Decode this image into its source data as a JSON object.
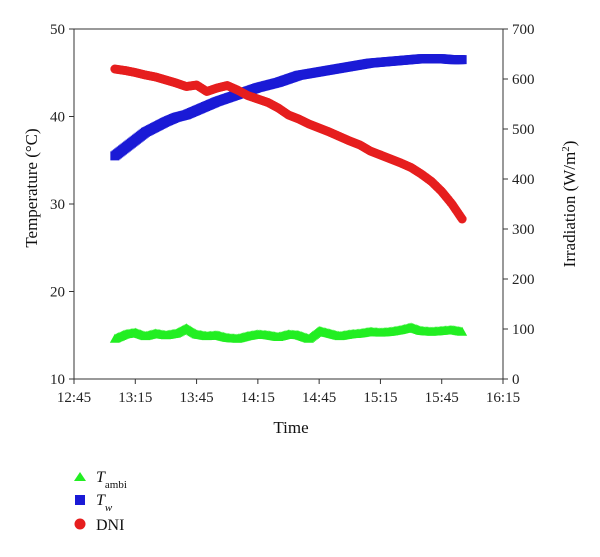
{
  "chart_data": {
    "type": "scatter",
    "x_axis": {
      "label": "Time",
      "tick_values": [
        "12:45",
        "13:15",
        "13:45",
        "14:15",
        "14:45",
        "15:15",
        "15:45",
        "16:15"
      ],
      "range": [
        "12:45",
        "16:15"
      ]
    },
    "y_left": {
      "label": "Temperature (°C)",
      "ticks": [
        10,
        20,
        30,
        40,
        50
      ],
      "range": [
        10,
        50
      ]
    },
    "y_right": {
      "label_prefix": "Irradiation (W/m",
      "label_sup": "2",
      "label_suffix": ")",
      "ticks": [
        0,
        100,
        200,
        300,
        400,
        500,
        600,
        700
      ],
      "range": [
        0,
        700
      ]
    },
    "series": [
      {
        "key": "tambi",
        "name_main": "T",
        "name_sub": "ambi",
        "axis": "left",
        "marker": "triangle",
        "color": "#22ee22",
        "points": [
          [
            "13:05",
            14.6
          ],
          [
            "13:10",
            15.1
          ],
          [
            "13:15",
            15.3
          ],
          [
            "13:20",
            14.9
          ],
          [
            "13:25",
            15.2
          ],
          [
            "13:30",
            15.0
          ],
          [
            "13:35",
            15.2
          ],
          [
            "13:40",
            15.8
          ],
          [
            "13:45",
            15.1
          ],
          [
            "13:50",
            14.9
          ],
          [
            "13:55",
            15.0
          ],
          [
            "14:00",
            14.7
          ],
          [
            "14:05",
            14.6
          ],
          [
            "14:10",
            14.9
          ],
          [
            "14:15",
            15.1
          ],
          [
            "14:20",
            15.0
          ],
          [
            "14:25",
            14.8
          ],
          [
            "14:30",
            15.1
          ],
          [
            "14:35",
            15.0
          ],
          [
            "14:40",
            14.6
          ],
          [
            "14:45",
            15.5
          ],
          [
            "14:50",
            15.2
          ],
          [
            "14:55",
            14.9
          ],
          [
            "15:00",
            15.1
          ],
          [
            "15:05",
            15.2
          ],
          [
            "15:10",
            15.4
          ],
          [
            "15:15",
            15.3
          ],
          [
            "15:20",
            15.4
          ],
          [
            "15:25",
            15.6
          ],
          [
            "15:30",
            15.9
          ],
          [
            "15:35",
            15.5
          ],
          [
            "15:40",
            15.4
          ],
          [
            "15:45",
            15.5
          ],
          [
            "15:50",
            15.6
          ],
          [
            "15:55",
            15.4
          ]
        ]
      },
      {
        "key": "tw",
        "name_main": "T",
        "name_sub": "w",
        "axis": "left",
        "marker": "square",
        "color": "#1a1ad6",
        "points": [
          [
            "13:05",
            35.5
          ],
          [
            "13:10",
            36.4
          ],
          [
            "13:15",
            37.3
          ],
          [
            "13:20",
            38.2
          ],
          [
            "13:25",
            38.8
          ],
          [
            "13:30",
            39.4
          ],
          [
            "13:35",
            39.9
          ],
          [
            "13:40",
            40.2
          ],
          [
            "13:45",
            40.7
          ],
          [
            "13:50",
            41.2
          ],
          [
            "13:55",
            41.7
          ],
          [
            "14:00",
            42.1
          ],
          [
            "14:05",
            42.5
          ],
          [
            "14:10",
            42.9
          ],
          [
            "14:15",
            43.3
          ],
          [
            "14:20",
            43.6
          ],
          [
            "14:25",
            43.9
          ],
          [
            "14:30",
            44.3
          ],
          [
            "14:35",
            44.7
          ],
          [
            "14:40",
            44.9
          ],
          [
            "14:45",
            45.1
          ],
          [
            "14:50",
            45.3
          ],
          [
            "14:55",
            45.5
          ],
          [
            "15:00",
            45.7
          ],
          [
            "15:05",
            45.9
          ],
          [
            "15:10",
            46.1
          ],
          [
            "15:15",
            46.2
          ],
          [
            "15:20",
            46.3
          ],
          [
            "15:25",
            46.4
          ],
          [
            "15:30",
            46.5
          ],
          [
            "15:35",
            46.6
          ],
          [
            "15:40",
            46.6
          ],
          [
            "15:45",
            46.6
          ],
          [
            "15:50",
            46.5
          ],
          [
            "15:55",
            46.5
          ]
        ]
      },
      {
        "key": "dni",
        "name_main": "DNI",
        "name_sub": "",
        "axis": "right",
        "marker": "circle",
        "color": "#e61e1e",
        "points": [
          [
            "13:05",
            620
          ],
          [
            "13:10",
            617
          ],
          [
            "13:15",
            613
          ],
          [
            "13:20",
            608
          ],
          [
            "13:25",
            604
          ],
          [
            "13:30",
            598
          ],
          [
            "13:35",
            592
          ],
          [
            "13:40",
            585
          ],
          [
            "13:45",
            588
          ],
          [
            "13:50",
            575
          ],
          [
            "13:55",
            582
          ],
          [
            "14:00",
            587
          ],
          [
            "14:05",
            578
          ],
          [
            "14:10",
            567
          ],
          [
            "14:15",
            560
          ],
          [
            "14:20",
            553
          ],
          [
            "14:25",
            542
          ],
          [
            "14:30",
            528
          ],
          [
            "14:35",
            520
          ],
          [
            "14:40",
            510
          ],
          [
            "14:45",
            502
          ],
          [
            "14:50",
            494
          ],
          [
            "14:55",
            485
          ],
          [
            "15:00",
            476
          ],
          [
            "15:05",
            468
          ],
          [
            "15:10",
            456
          ],
          [
            "15:15",
            448
          ],
          [
            "15:20",
            440
          ],
          [
            "15:25",
            432
          ],
          [
            "15:30",
            423
          ],
          [
            "15:35",
            410
          ],
          [
            "15:40",
            395
          ],
          [
            "15:45",
            375
          ],
          [
            "15:50",
            350
          ],
          [
            "15:55",
            320
          ]
        ]
      }
    ]
  }
}
